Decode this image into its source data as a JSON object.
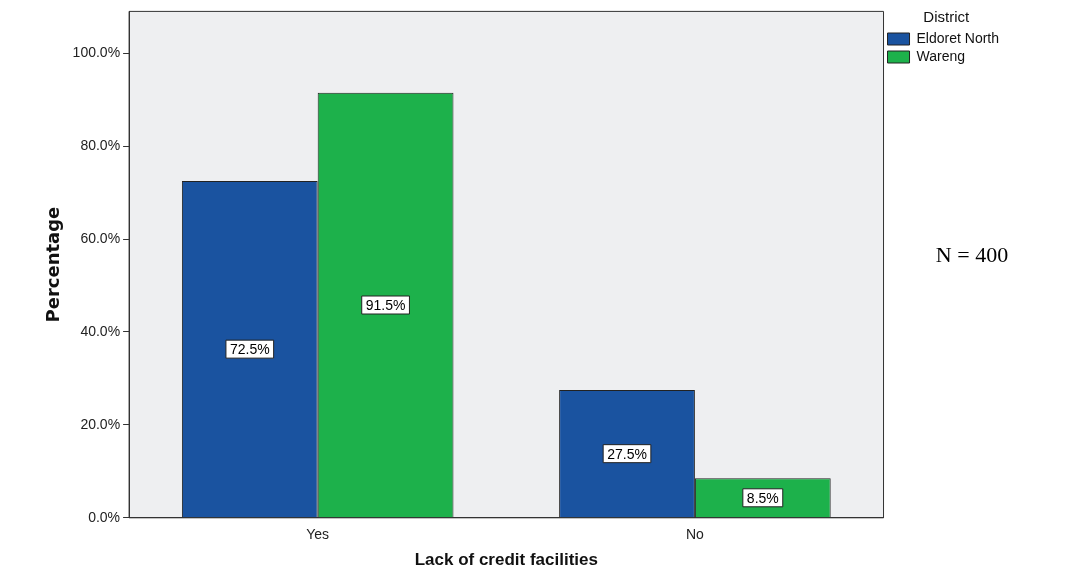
{
  "chart_data": {
    "type": "bar",
    "xlabel": "Lack of credit facilities",
    "ylabel": "Percentage",
    "legend_title": "District",
    "legend": "top right",
    "categories": [
      "Yes",
      "No"
    ],
    "series": [
      {
        "name": "Eldoret North",
        "color": "#1a53a0",
        "values": [
          72.5,
          27.5
        ],
        "value_labels": [
          "72.5%",
          "27.5%"
        ]
      },
      {
        "name": "Wareng",
        "color": "#1db14b",
        "values": [
          91.5,
          8.5
        ],
        "value_labels": [
          "91.5%",
          "8.5%"
        ]
      }
    ],
    "ylim": [
      0,
      109
    ],
    "yticks": [
      {
        "value": 0,
        "label": "0.0%"
      },
      {
        "value": 20,
        "label": "20.0%"
      },
      {
        "value": 40,
        "label": "40.0%"
      },
      {
        "value": 60,
        "label": "60.0%"
      },
      {
        "value": 80,
        "label": "80.0%"
      },
      {
        "value": 100,
        "label": "100.0%"
      }
    ],
    "annotations": [
      "N = 400"
    ]
  }
}
